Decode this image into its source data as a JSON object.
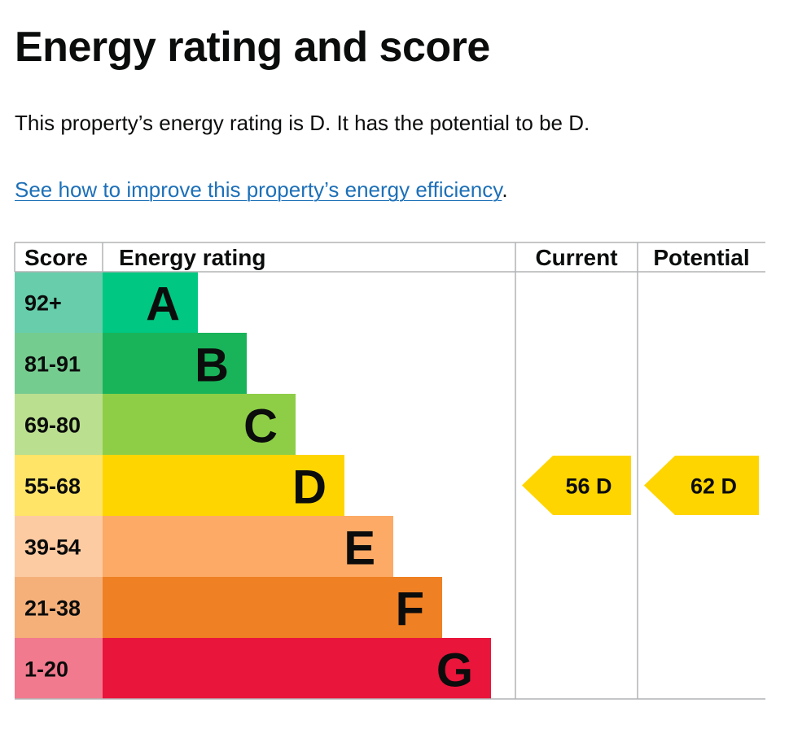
{
  "page": {
    "title": "Energy rating and score",
    "summary": "This property’s energy rating is D. It has the potential to be D.",
    "improve_link": "See how to improve this property’s energy efficiency",
    "improve_suffix": "."
  },
  "chart_data": {
    "type": "bar",
    "headers": {
      "score": "Score",
      "rating": "Energy rating",
      "current": "Current",
      "potential": "Potential"
    },
    "bands": [
      {
        "letter": "A",
        "range": "92+",
        "color": "#00c781",
        "score_bg": "#67cdab"
      },
      {
        "letter": "B",
        "range": "81-91",
        "color": "#19b459",
        "score_bg": "#75cc8f"
      },
      {
        "letter": "C",
        "range": "69-80",
        "color": "#8dce46",
        "score_bg": "#badf8f"
      },
      {
        "letter": "D",
        "range": "55-68",
        "color": "#ffd500",
        "score_bg": "#ffe467"
      },
      {
        "letter": "E",
        "range": "39-54",
        "color": "#fcaa65",
        "score_bg": "#fdcba2"
      },
      {
        "letter": "F",
        "range": "21-38",
        "color": "#ef8023",
        "score_bg": "#f5b07a"
      },
      {
        "letter": "G",
        "range": "1-20",
        "color": "#e9153b",
        "score_bg": "#f27a8e"
      }
    ],
    "current": {
      "score": 56,
      "letter": "D",
      "label": "56  D"
    },
    "potential": {
      "score": 62,
      "letter": "D",
      "label": "62  D"
    },
    "colors": {
      "border": "#b1b4b6",
      "text": "#0b0c0c",
      "link": "#1d70b8"
    }
  }
}
